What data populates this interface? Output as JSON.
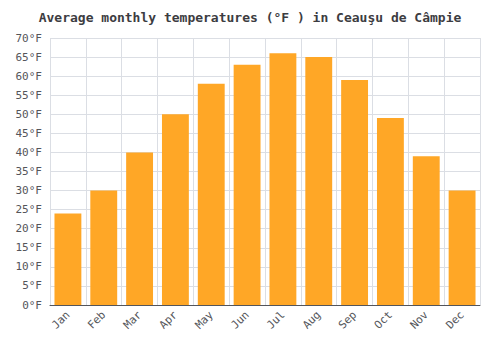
{
  "chart_data": {
    "type": "bar",
    "title": "Average monthly temperatures (°F ) in Ceauşu de Câmpie",
    "categories": [
      "Jan",
      "Feb",
      "Mar",
      "Apr",
      "May",
      "Jun",
      "Jul",
      "Aug",
      "Sep",
      "Oct",
      "Nov",
      "Dec"
    ],
    "values": [
      24,
      30,
      40,
      50,
      58,
      63,
      66,
      65,
      59,
      49,
      39,
      30
    ],
    "color": "#FFA726",
    "ylim": [
      0,
      70
    ],
    "yticks": [
      {
        "value": 0,
        "label": "0°F"
      },
      {
        "value": 5,
        "label": "5°F"
      },
      {
        "value": 10,
        "label": "10°F"
      },
      {
        "value": 15,
        "label": "15°F"
      },
      {
        "value": 20,
        "label": "20°F"
      },
      {
        "value": 25,
        "label": "25°F"
      },
      {
        "value": 30,
        "label": "30°F"
      },
      {
        "value": 35,
        "label": "35°F"
      },
      {
        "value": 40,
        "label": "40°F"
      },
      {
        "value": 45,
        "label": "45°F"
      },
      {
        "value": 50,
        "label": "50°F"
      },
      {
        "value": 55,
        "label": "55°F"
      },
      {
        "value": 60,
        "label": "60°F"
      },
      {
        "value": 65,
        "label": "65°F"
      },
      {
        "value": 70,
        "label": "70°F"
      }
    ],
    "grid": true
  }
}
